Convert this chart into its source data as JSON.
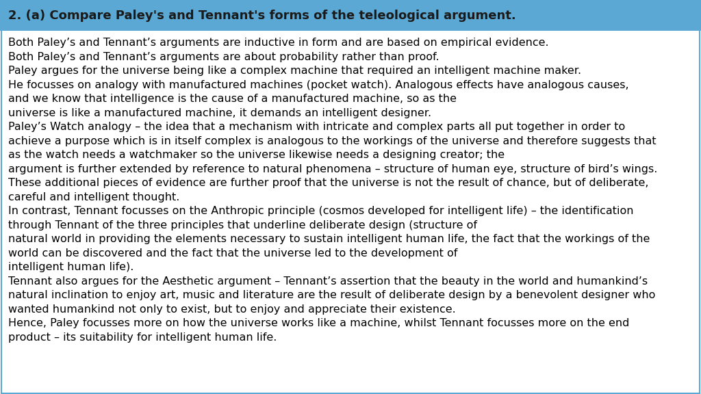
{
  "title": "2. (a) Compare Paley's and Tennant's forms of the teleological argument.",
  "title_bg_color": "#5ba8d4",
  "title_text_color": "#1a1a1a",
  "body_bg_color": "#ffffff",
  "border_color": "#5ba8d4",
  "body_lines": [
    "Both Paley’s and Tennant’s arguments are inductive in form and are based on empirical evidence.",
    "Both Paley’s and Tennant’s arguments are about probability rather than proof.",
    "Paley argues for the universe being like a complex machine that required an intelligent machine maker.",
    "He focusses on analogy with manufactured machines (pocket watch). Analogous effects have analogous causes,",
    "and we know that intelligence is the cause of a manufactured machine, so as the",
    "universe is like a manufactured machine, it demands an intelligent designer.",
    "Paley’s Watch analogy – the idea that a mechanism with intricate and complex parts all put together in order to",
    "achieve a purpose which is in itself complex is analogous to the workings of the universe and therefore suggests that",
    "as the watch needs a watchmaker so the universe likewise needs a designing creator; the",
    "argument is further extended by reference to natural phenomena – structure of human eye, structure of bird’s wings.",
    "These additional pieces of evidence are further proof that the universe is not the result of chance, but of deliberate,",
    "careful and intelligent thought.",
    "In contrast, Tennant focusses on the Anthropic principle (cosmos developed for intelligent life) – the identification",
    "through Tennant of the three principles that underline deliberate design (structure of",
    "natural world in providing the elements necessary to sustain intelligent human life, the fact that the workings of the",
    "world can be discovered and the fact that the universe led to the development of",
    "intelligent human life).",
    "Tennant also argues for the Aesthetic argument – Tennant’s assertion that the beauty in the world and humankind’s",
    "natural inclination to enjoy art, music and literature are the result of deliberate design by a benevolent designer who",
    "wanted humankind not only to exist, but to enjoy and appreciate their existence.",
    "Hence, Paley focusses more on how the universe works like a machine, whilst Tennant focusses more on the end",
    "product – its suitability for intelligent human life."
  ],
  "title_fontsize": 13.0,
  "body_fontsize": 11.5,
  "font_family": "DejaVu Sans",
  "title_font_weight": "bold",
  "fig_width": 10.24,
  "fig_height": 5.76,
  "dpi": 100
}
